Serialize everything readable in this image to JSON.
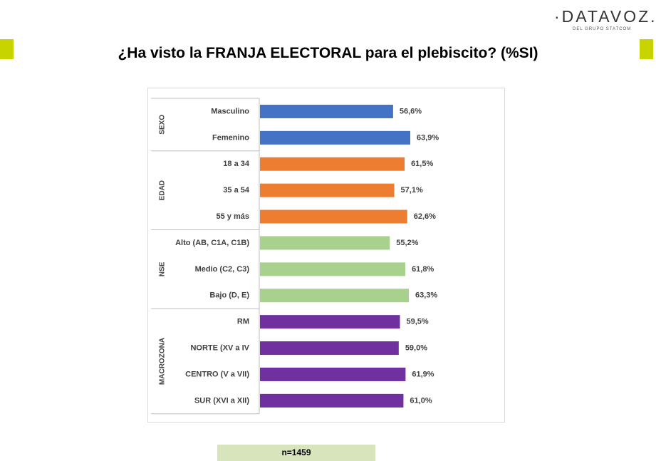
{
  "logo": {
    "name": "·DATAVOZ.",
    "tagline": "DEL GRUPO STATCOM"
  },
  "title": "¿Ha visto la FRANJA ELECTORAL para el plebiscito? (%SI)",
  "sample": "n=1459",
  "colors": {
    "accent": "#c8d400",
    "sexo": "#4472c4",
    "edad": "#ed7d31",
    "nse": "#a9d18e",
    "macrozona": "#7030a0"
  },
  "chart_data": {
    "type": "bar",
    "orientation": "horizontal",
    "title": "¿Ha visto la FRANJA ELECTORAL para el plebiscito? (%SI)",
    "value_suffix": "%",
    "xlim": [
      0,
      100
    ],
    "groups": [
      {
        "name": "SEXO",
        "color": "#4472c4",
        "categories": [
          "Masculino",
          "Femenino"
        ],
        "values": [
          56.6,
          63.9
        ],
        "labels": [
          "56,6%",
          "63,9%"
        ]
      },
      {
        "name": "EDAD",
        "color": "#ed7d31",
        "categories": [
          "18 a 34",
          "35 a 54",
          "55 y más"
        ],
        "values": [
          61.5,
          57.1,
          62.6
        ],
        "labels": [
          "61,5%",
          "57,1%",
          "62,6%"
        ]
      },
      {
        "name": "NSE",
        "color": "#a9d18e",
        "categories": [
          "Alto (AB, C1A, C1B)",
          "Medio (C2, C3)",
          "Bajo (D, E)"
        ],
        "values": [
          55.2,
          61.8,
          63.3
        ],
        "labels": [
          "55,2%",
          "61,8%",
          "63,3%"
        ]
      },
      {
        "name": "MACROZONA",
        "color": "#7030a0",
        "categories": [
          "RM",
          "NORTE (XV a IV",
          "CENTRO (V a VII)",
          "SUR (XVI a XII)"
        ],
        "values": [
          59.5,
          59.0,
          61.9,
          61.0
        ],
        "labels": [
          "59,5%",
          "59,0%",
          "61,9%",
          "61,0%"
        ]
      }
    ]
  }
}
